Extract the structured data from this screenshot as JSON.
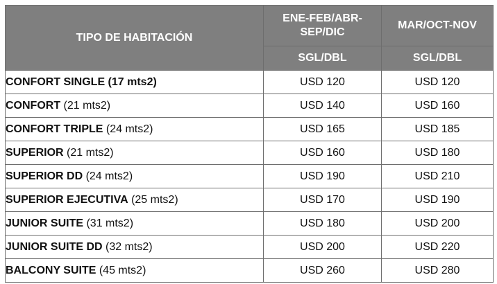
{
  "header": {
    "room_type": "TIPO DE HABITACIÓN",
    "season1": "ENE-FEB/ABR-SEP/DIC",
    "season2": "MAR/OCT-NOV",
    "sub1": "SGL/DBL",
    "sub2": "SGL/DBL"
  },
  "rows": [
    {
      "name": "CONFORT SINGLE (17 mts2)",
      "size": "",
      "price1": "USD 120",
      "price2": "USD 120"
    },
    {
      "name": "CONFORT",
      "size": " (21 mts2)",
      "price1": "USD 140",
      "price2": "USD 160"
    },
    {
      "name": "CONFORT TRIPLE",
      "size": " (24 mts2)",
      "price1": "USD 165",
      "price2": "USD 185"
    },
    {
      "name": "SUPERIOR",
      "size": " (21 mts2)",
      "price1": "USD 160",
      "price2": "USD 180"
    },
    {
      "name": "SUPERIOR DD",
      "size": " (24 mts2)",
      "price1": "USD 190",
      "price2": "USD 210"
    },
    {
      "name": "SUPERIOR EJECUTIVA",
      "size": " (25 mts2)",
      "price1": "USD 170",
      "price2": "USD 190"
    },
    {
      "name": "JUNIOR SUITE",
      "size": " (31 mts2)",
      "price1": "USD 180",
      "price2": "USD 200"
    },
    {
      "name": "JUNIOR SUITE DD",
      "size": "  (32 mts2)",
      "price1": "USD 200",
      "price2": "USD 220"
    },
    {
      "name": "BALCONY SUITE",
      "size": " (45 mts2)",
      "price1": "USD 260",
      "price2": "USD 280"
    }
  ]
}
